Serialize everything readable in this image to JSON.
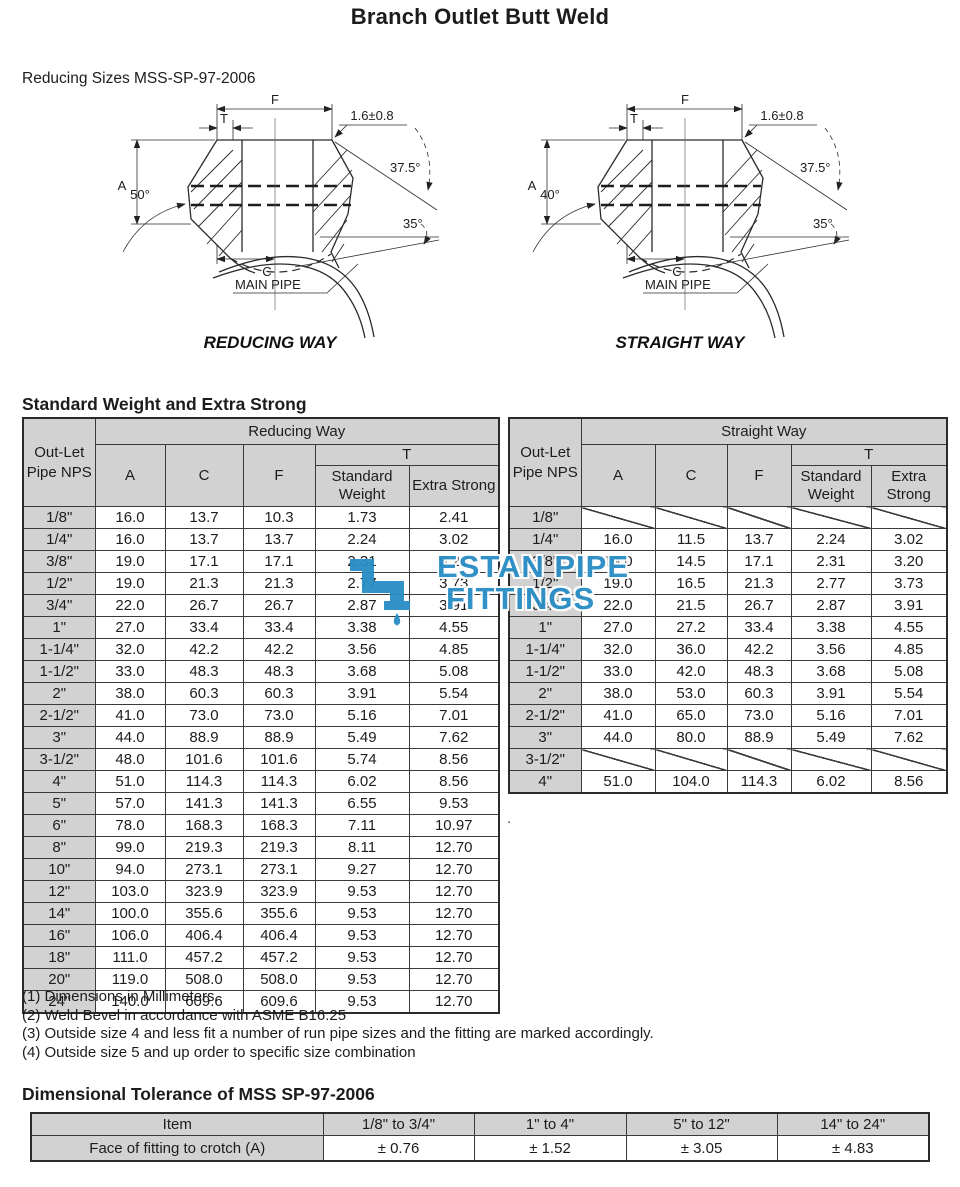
{
  "page": {
    "title": "Branch Outlet Butt Weld",
    "subtitle": "Reducing Sizes MSS-SP-97-2006",
    "section1_heading": "Standard Weight and Extra Strong",
    "section2_heading": "Dimensional Tolerance of MSS SP-97-2006",
    "stray_dot": ".",
    "notes": [
      "(1) Dimensions in Millimeters.",
      "(2) Weld Bevel in accordance with ASME B16.25",
      "(3) Outside size 4 and less fit a number of run pipe sizes and the fitting are marked accordingly.",
      "(4) Outside size 5 and up order to specific size combination"
    ]
  },
  "watermark": {
    "line1": "ESTAN PIPE",
    "line2": "FITTINGS",
    "color": "#2a8dc4"
  },
  "diagrams": {
    "left": {
      "caption": "REDUCING WAY",
      "labels": {
        "f": "F",
        "t": "T",
        "tol": "1.6±0.8",
        "a": "A",
        "angle_side": "50°",
        "angle_bevel": "37.5°",
        "angle_bottom": "35°",
        "c": "C",
        "main_pipe": "MAIN PIPE"
      }
    },
    "right": {
      "caption": "STRAIGHT WAY",
      "labels": {
        "f": "F",
        "t": "T",
        "tol": "1.6±0.8",
        "a": "A",
        "angle_side": "40°",
        "angle_bevel": "37.5°",
        "angle_bottom": "35°",
        "c": "C",
        "main_pipe": "MAIN PIPE"
      }
    }
  },
  "reducing_table": {
    "corner_header": "Out-Let Pipe NPS",
    "group_header": "Reducing Way",
    "col_headers": [
      "A",
      "C",
      "F"
    ],
    "t_header": "T",
    "t_sub": [
      "Standard Weight",
      "Extra Strong"
    ],
    "rows": [
      [
        "1/8\"",
        "16.0",
        "13.7",
        "10.3",
        "1.73",
        "2.41"
      ],
      [
        "1/4\"",
        "16.0",
        "13.7",
        "13.7",
        "2.24",
        "3.02"
      ],
      [
        "3/8\"",
        "19.0",
        "17.1",
        "17.1",
        "2.31",
        "3.20"
      ],
      [
        "1/2\"",
        "19.0",
        "21.3",
        "21.3",
        "2.77",
        "3.73"
      ],
      [
        "3/4\"",
        "22.0",
        "26.7",
        "26.7",
        "2.87",
        "3.91"
      ],
      [
        "1\"",
        "27.0",
        "33.4",
        "33.4",
        "3.38",
        "4.55"
      ],
      [
        "1-1/4\"",
        "32.0",
        "42.2",
        "42.2",
        "3.56",
        "4.85"
      ],
      [
        "1-1/2\"",
        "33.0",
        "48.3",
        "48.3",
        "3.68",
        "5.08"
      ],
      [
        "2\"",
        "38.0",
        "60.3",
        "60.3",
        "3.91",
        "5.54"
      ],
      [
        "2-1/2\"",
        "41.0",
        "73.0",
        "73.0",
        "5.16",
        "7.01"
      ],
      [
        "3\"",
        "44.0",
        "88.9",
        "88.9",
        "5.49",
        "7.62"
      ],
      [
        "3-1/2\"",
        "48.0",
        "101.6",
        "101.6",
        "5.74",
        "8.56"
      ],
      [
        "4\"",
        "51.0",
        "114.3",
        "114.3",
        "6.02",
        "8.56"
      ],
      [
        "5\"",
        "57.0",
        "141.3",
        "141.3",
        "6.55",
        "9.53"
      ],
      [
        "6\"",
        "78.0",
        "168.3",
        "168.3",
        "7.11",
        "10.97"
      ],
      [
        "8\"",
        "99.0",
        "219.3",
        "219.3",
        "8.11",
        "12.70"
      ],
      [
        "10\"",
        "94.0",
        "273.1",
        "273.1",
        "9.27",
        "12.70"
      ],
      [
        "12\"",
        "103.0",
        "323.9",
        "323.9",
        "9.53",
        "12.70"
      ],
      [
        "14\"",
        "100.0",
        "355.6",
        "355.6",
        "9.53",
        "12.70"
      ],
      [
        "16\"",
        "106.0",
        "406.4",
        "406.4",
        "9.53",
        "12.70"
      ],
      [
        "18\"",
        "111.0",
        "457.2",
        "457.2",
        "9.53",
        "12.70"
      ],
      [
        "20\"",
        "119.0",
        "508.0",
        "508.0",
        "9.53",
        "12.70"
      ],
      [
        "24\"",
        "140.0",
        "609.6",
        "609.6",
        "9.53",
        "12.70"
      ]
    ]
  },
  "straight_table": {
    "corner_header": "Out-Let Pipe NPS",
    "group_header": "Straight Way",
    "col_headers": [
      "A",
      "C",
      "F"
    ],
    "t_header": "T",
    "t_sub": [
      "Standard Weight",
      "Extra Strong"
    ],
    "rows": [
      [
        "1/8\"",
        null,
        null,
        null,
        null,
        null
      ],
      [
        "1/4\"",
        "16.0",
        "11.5",
        "13.7",
        "2.24",
        "3.02"
      ],
      [
        "3/8\"",
        "19.0",
        "14.5",
        "17.1",
        "2.31",
        "3.20"
      ],
      [
        "1/2\"",
        "19.0",
        "16.5",
        "21.3",
        "2.77",
        "3.73"
      ],
      [
        "3/4\"",
        "22.0",
        "21.5",
        "26.7",
        "2.87",
        "3.91"
      ],
      [
        "1\"",
        "27.0",
        "27.2",
        "33.4",
        "3.38",
        "4.55"
      ],
      [
        "1-1/4\"",
        "32.0",
        "36.0",
        "42.2",
        "3.56",
        "4.85"
      ],
      [
        "1-1/2\"",
        "33.0",
        "42.0",
        "48.3",
        "3.68",
        "5.08"
      ],
      [
        "2\"",
        "38.0",
        "53.0",
        "60.3",
        "3.91",
        "5.54"
      ],
      [
        "2-1/2\"",
        "41.0",
        "65.0",
        "73.0",
        "5.16",
        "7.01"
      ],
      [
        "3\"",
        "44.0",
        "80.0",
        "88.9",
        "5.49",
        "7.62"
      ],
      [
        "3-1/2\"",
        null,
        null,
        null,
        null,
        null
      ],
      [
        "4\"",
        "51.0",
        "104.0",
        "114.3",
        "6.02",
        "8.56"
      ]
    ]
  },
  "tolerance_table": {
    "headers": [
      "Item",
      "1/8\" to 3/4\"",
      "1\" to 4\"",
      "5\" to 12\"",
      "14\" to 24\""
    ],
    "rows": [
      [
        "Face of fitting to crotch (A)",
        "± 0.76",
        "± 1.52",
        "± 3.05",
        "± 4.83"
      ]
    ]
  }
}
